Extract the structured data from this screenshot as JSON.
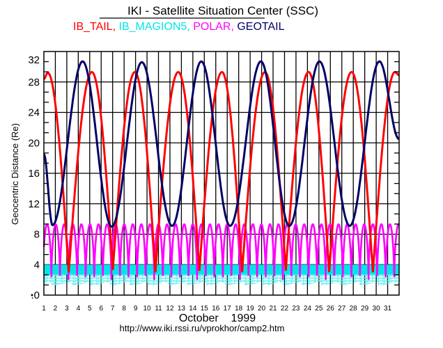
{
  "chart_data": {
    "type": "line",
    "title": "IKI - Satellite Situation Center (SSC)",
    "legend": [
      {
        "label": "IB_TAIL,",
        "color": "#ff0000"
      },
      {
        "label": "IB_MAGION5,",
        "color": "#00e5e8"
      },
      {
        "label": "POLAR,",
        "color": "#ff00ff"
      },
      {
        "label": "GEOTAIL",
        "color": "#000066"
      }
    ],
    "xlabel": "October    1999",
    "ylabel": "Geocentric Distance (Re)",
    "footer_url": "http://www.iki.rssi.ru/vprokhor/camp2.htm",
    "xlim": [
      1,
      32
    ],
    "ylim": [
      0,
      32
    ],
    "grid": true,
    "x_ticks": [
      "1",
      "2",
      "3",
      "4",
      "5",
      "6",
      "7",
      "8",
      "9",
      "10",
      "11",
      "12",
      "13",
      "14",
      "15",
      "16",
      "17",
      "18",
      "19",
      "20",
      "21",
      "22",
      "23",
      "24",
      "25",
      "26",
      "27",
      "28",
      "29",
      "30",
      "31"
    ],
    "y_ticks": [
      {
        "value": 32,
        "label": "32"
      },
      {
        "value": 28,
        "label": "28"
      },
      {
        "value": 24,
        "label": "24"
      },
      {
        "value": 20,
        "label": "20"
      },
      {
        "value": 16,
        "label": "16"
      },
      {
        "value": 12,
        "label": "12"
      },
      {
        "value": 8,
        "label": "8"
      },
      {
        "value": 4,
        "label": "4"
      },
      {
        "value": 0,
        "label": ".0"
      }
    ],
    "series": [
      {
        "name": "GEOTAIL",
        "color": "#000066",
        "extrema": [
          [
            1,
            18.5
          ],
          [
            1.75,
            9.2
          ],
          [
            4.38,
            30.7
          ],
          [
            6.92,
            9.0
          ],
          [
            9.55,
            30.6
          ],
          [
            12.19,
            9.1
          ],
          [
            14.74,
            30.7
          ],
          [
            17.25,
            9.1
          ],
          [
            19.94,
            30.7
          ],
          [
            22.42,
            9.1
          ],
          [
            25.05,
            30.7
          ],
          [
            27.69,
            9.1
          ],
          [
            30.28,
            30.7
          ],
          [
            32,
            20.5
          ]
        ]
      },
      {
        "name": "IB_TAIL",
        "color": "#ff0000",
        "extrema": [
          [
            1,
            28.4,
            "start"
          ],
          [
            1.34,
            29.2,
            "peak"
          ],
          [
            3.17,
            3.0,
            "cusp"
          ],
          [
            5.19,
            29.3,
            "peak"
          ],
          [
            7.02,
            3.3,
            "cusp"
          ],
          [
            8.94,
            29.3,
            "peak"
          ],
          [
            10.73,
            3.0,
            "cusp"
          ],
          [
            12.73,
            29.3,
            "peak"
          ],
          [
            14.57,
            3.2,
            "cusp"
          ],
          [
            16.54,
            29.3,
            "peak"
          ],
          [
            18.3,
            3.0,
            "cusp"
          ],
          [
            20.29,
            29.3,
            "peak"
          ],
          [
            22.11,
            3.2,
            "cusp"
          ],
          [
            24.1,
            29.3,
            "peak"
          ],
          [
            25.9,
            3.0,
            "cusp"
          ],
          [
            27.85,
            29.3,
            "peak"
          ],
          [
            29.71,
            3.0,
            "cusp"
          ],
          [
            31.64,
            29.3,
            "peak"
          ],
          [
            32,
            28.9,
            "end"
          ]
        ]
      },
      {
        "name": "POLAR",
        "color": "#ff00ff",
        "max": 9.3,
        "min": 2.0,
        "period_days": 0.748,
        "first_peak_day": 1.28
      },
      {
        "name": "IB_MAGION5",
        "color": "#00e5e8",
        "max": 4.0,
        "min": 1.2,
        "dense_core_min": 2.7
      }
    ]
  }
}
